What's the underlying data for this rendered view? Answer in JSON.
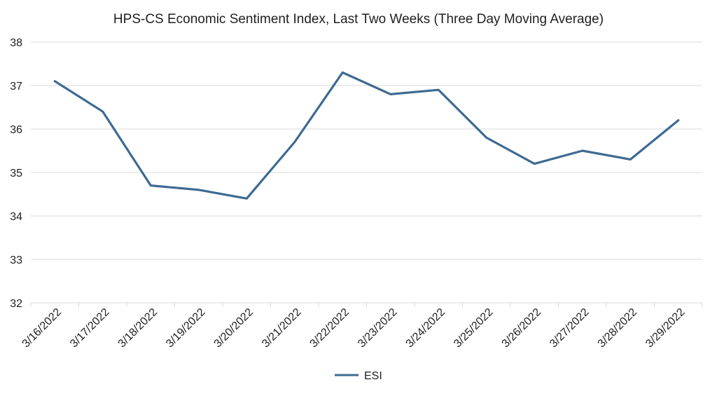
{
  "chart_data": {
    "type": "line",
    "title": "HPS-CS Economic Sentiment Index, Last Two Weeks (Three Day Moving Average)",
    "xlabel": "",
    "ylabel": "",
    "categories": [
      "3/16/2022",
      "3/17/2022",
      "3/18/2022",
      "3/19/2022",
      "3/20/2022",
      "3/21/2022",
      "3/22/2022",
      "3/23/2022",
      "3/24/2022",
      "3/25/2022",
      "3/26/2022",
      "3/27/2022",
      "3/28/2022",
      "3/29/2022"
    ],
    "series": [
      {
        "name": "ESI",
        "color": "#3d6a92",
        "values": [
          37.1,
          36.4,
          34.7,
          34.6,
          34.4,
          35.7,
          37.3,
          36.8,
          36.9,
          35.8,
          35.2,
          35.5,
          35.3,
          36.2
        ]
      }
    ],
    "ylim": [
      32,
      38
    ],
    "yticks": [
      "32",
      "33",
      "34",
      "35",
      "36",
      "37",
      "38"
    ],
    "grid": true,
    "legend": "bottom-center"
  }
}
